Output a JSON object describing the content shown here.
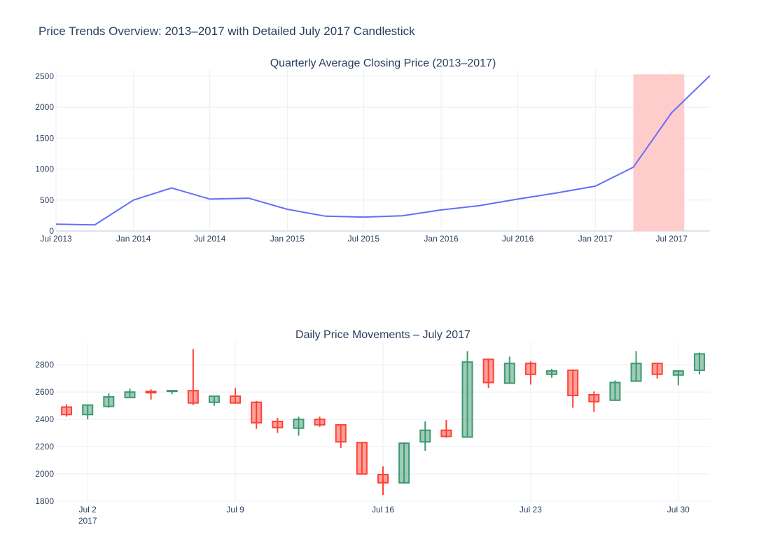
{
  "title": "Price Trends Overview: 2013–2017 with Detailed July 2017 Candlestick",
  "chart_data": [
    {
      "type": "line",
      "title": "Quarterly Average Closing Price (2013–2017)",
      "x_tick_labels": [
        "Jul 2013",
        "Jan 2014",
        "Jul 2014",
        "Jan 2015",
        "Jul 2015",
        "Jan 2016",
        "Jul 2016",
        "Jan 2017",
        "Jul 2017"
      ],
      "y_tick_labels": [
        "0",
        "500",
        "1000",
        "1500",
        "2000",
        "2500"
      ],
      "ylim": [
        0,
        2600
      ],
      "xlim": [
        "2013-07-01",
        "2017-09-30"
      ],
      "grid": true,
      "line_color": "#636efa",
      "highlight": {
        "x0": "2017-04-01",
        "x1": "2017-07-31",
        "color": "#ffcccc"
      },
      "series": [
        {
          "x": [
            "2013-07-01",
            "2013-10-01",
            "2014-01-01",
            "2014-04-01",
            "2014-07-01",
            "2014-10-01",
            "2015-01-01",
            "2015-04-01",
            "2015-07-01",
            "2015-10-01",
            "2016-01-01",
            "2016-04-01",
            "2016-07-01",
            "2016-10-01",
            "2017-01-01",
            "2017-04-01",
            "2017-07-01",
            "2017-09-30"
          ],
          "y": [
            110,
            100,
            500,
            695,
            515,
            530,
            350,
            240,
            225,
            245,
            340,
            410,
            515,
            615,
            725,
            1030,
            1910,
            2510
          ]
        }
      ]
    },
    {
      "type": "candlestick",
      "title": "Daily Price Movements – July 2017",
      "x_tick_labels": [
        {
          "line1": "Jul 2",
          "line2": "2017"
        },
        {
          "line1": "Jul 9",
          "line2": ""
        },
        {
          "line1": "Jul 16",
          "line2": ""
        },
        {
          "line1": "Jul 23",
          "line2": ""
        },
        {
          "line1": "Jul 30",
          "line2": ""
        }
      ],
      "y_tick_labels": [
        "1800",
        "2000",
        "2200",
        "2400",
        "2600",
        "2800"
      ],
      "ylim": [
        1800,
        2970
      ],
      "xlim": [
        "2017-06-30T12:00",
        "2017-07-31T12:00"
      ],
      "grid": true,
      "increasing_color": "#3d9970",
      "decreasing_color": "#ff4136",
      "candles": [
        {
          "date": "2017-07-01",
          "open": 2490,
          "high": 2510,
          "low": 2420,
          "close": 2435
        },
        {
          "date": "2017-07-02",
          "open": 2435,
          "high": 2510,
          "low": 2400,
          "close": 2505
        },
        {
          "date": "2017-07-03",
          "open": 2495,
          "high": 2590,
          "low": 2485,
          "close": 2565
        },
        {
          "date": "2017-07-04",
          "open": 2560,
          "high": 2625,
          "low": 2555,
          "close": 2600
        },
        {
          "date": "2017-07-05",
          "open": 2605,
          "high": 2620,
          "low": 2545,
          "close": 2595
        },
        {
          "date": "2017-07-06",
          "open": 2605,
          "high": 2615,
          "low": 2585,
          "close": 2610
        },
        {
          "date": "2017-07-07",
          "open": 2610,
          "high": 2915,
          "low": 2505,
          "close": 2520
        },
        {
          "date": "2017-07-08",
          "open": 2525,
          "high": 2575,
          "low": 2500,
          "close": 2570
        },
        {
          "date": "2017-07-09",
          "open": 2570,
          "high": 2630,
          "low": 2515,
          "close": 2520
        },
        {
          "date": "2017-07-10",
          "open": 2525,
          "high": 2535,
          "low": 2330,
          "close": 2375
        },
        {
          "date": "2017-07-11",
          "open": 2385,
          "high": 2410,
          "low": 2300,
          "close": 2340
        },
        {
          "date": "2017-07-12",
          "open": 2335,
          "high": 2420,
          "low": 2280,
          "close": 2400
        },
        {
          "date": "2017-07-13",
          "open": 2400,
          "high": 2420,
          "low": 2345,
          "close": 2360
        },
        {
          "date": "2017-07-14",
          "open": 2360,
          "high": 2360,
          "low": 2190,
          "close": 2235
        },
        {
          "date": "2017-07-15",
          "open": 2230,
          "high": 2230,
          "low": 1995,
          "close": 2000
        },
        {
          "date": "2017-07-16",
          "open": 1995,
          "high": 2055,
          "low": 1845,
          "close": 1935
        },
        {
          "date": "2017-07-17",
          "open": 1935,
          "high": 2230,
          "low": 1930,
          "close": 2225
        },
        {
          "date": "2017-07-18",
          "open": 2235,
          "high": 2385,
          "low": 2170,
          "close": 2320
        },
        {
          "date": "2017-07-19",
          "open": 2320,
          "high": 2395,
          "low": 2265,
          "close": 2275
        },
        {
          "date": "2017-07-20",
          "open": 2270,
          "high": 2900,
          "low": 2270,
          "close": 2820
        },
        {
          "date": "2017-07-21",
          "open": 2840,
          "high": 2840,
          "low": 2630,
          "close": 2670
        },
        {
          "date": "2017-07-22",
          "open": 2665,
          "high": 2860,
          "low": 2665,
          "close": 2810
        },
        {
          "date": "2017-07-23",
          "open": 2810,
          "high": 2825,
          "low": 2655,
          "close": 2730
        },
        {
          "date": "2017-07-24",
          "open": 2730,
          "high": 2770,
          "low": 2705,
          "close": 2755
        },
        {
          "date": "2017-07-25",
          "open": 2760,
          "high": 2765,
          "low": 2485,
          "close": 2575
        },
        {
          "date": "2017-07-26",
          "open": 2580,
          "high": 2605,
          "low": 2455,
          "close": 2530
        },
        {
          "date": "2017-07-27",
          "open": 2540,
          "high": 2685,
          "low": 2535,
          "close": 2670
        },
        {
          "date": "2017-07-28",
          "open": 2680,
          "high": 2900,
          "low": 2680,
          "close": 2810
        },
        {
          "date": "2017-07-29",
          "open": 2810,
          "high": 2810,
          "low": 2700,
          "close": 2730
        },
        {
          "date": "2017-07-30",
          "open": 2725,
          "high": 2760,
          "low": 2650,
          "close": 2755
        },
        {
          "date": "2017-07-31",
          "open": 2760,
          "high": 2890,
          "low": 2730,
          "close": 2880
        }
      ]
    }
  ]
}
